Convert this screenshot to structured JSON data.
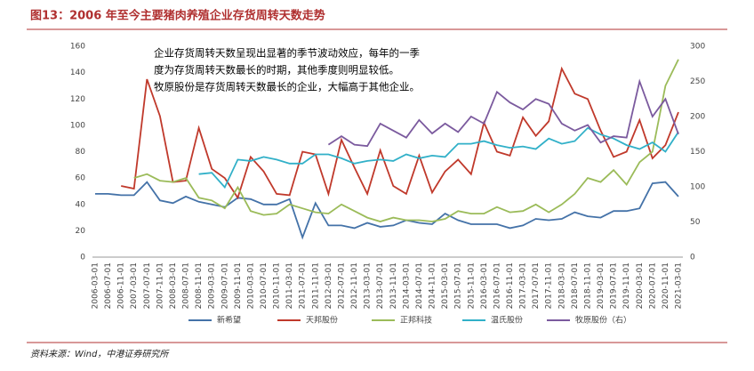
{
  "chart_data": {
    "type": "line",
    "title": "图13：2006 年至今主要猪肉养殖企业存货周转天数走势",
    "annotation": [
      "企业存货周转天数呈现出显著的季节波动效应，每年的一季",
      "度为存货周转天数最长的时期，其他季度则明显较低。",
      "牧原股份是存货周转天数最长的企业，大幅高于其他企业。"
    ],
    "source": "资料来源：Wind，中港证券研究所",
    "categories": [
      "2006-03-01",
      "2006-07-01",
      "2006-11-01",
      "2007-03-01",
      "2007-07-01",
      "2007-11-01",
      "2008-03-01",
      "2008-07-01",
      "2008-11-01",
      "2009-03-01",
      "2009-07-01",
      "2009-11-01",
      "2010-03-01",
      "2010-07-01",
      "2010-11-01",
      "2011-03-01",
      "2011-07-01",
      "2011-11-01",
      "2012-03-01",
      "2012-07-01",
      "2012-11-01",
      "2013-03-01",
      "2013-07-01",
      "2013-11-01",
      "2014-03-01",
      "2014-07-01",
      "2014-11-01",
      "2015-03-01",
      "2015-07-01",
      "2015-11-01",
      "2016-03-01",
      "2016-07-01",
      "2016-11-01",
      "2017-03-01",
      "2017-07-01",
      "2017-11-01",
      "2018-03-01",
      "2018-07-01",
      "2018-11-01",
      "2019-03-01",
      "2019-07-01",
      "2019-11-01",
      "2020-03-01",
      "2020-07-01",
      "2020-11-01",
      "2021-03-01"
    ],
    "series": [
      {
        "name": "新希望",
        "color": "#4472a8",
        "values": [
          48,
          48,
          47,
          47,
          57,
          43,
          41,
          46,
          42,
          40,
          38,
          45,
          44,
          40,
          40,
          44,
          15,
          41,
          24,
          24,
          22,
          26,
          23,
          24,
          28,
          26,
          25,
          33,
          28,
          25,
          25,
          25,
          22,
          24,
          29,
          28,
          29,
          34,
          31,
          30,
          35,
          35,
          37,
          56,
          57,
          46
        ]
      },
      {
        "name": "天邦股份",
        "color": "#c0392b",
        "values": [
          null,
          null,
          54,
          52,
          135,
          107,
          57,
          58,
          98,
          67,
          60,
          45,
          76,
          65,
          48,
          47,
          80,
          78,
          48,
          89,
          68,
          48,
          81,
          54,
          48,
          77,
          49,
          65,
          74,
          63,
          102,
          80,
          77,
          106,
          92,
          103,
          143,
          124,
          120,
          96,
          76,
          80,
          104,
          75,
          85,
          110
        ]
      },
      {
        "name": "正邦科技",
        "color": "#9bbb59",
        "values": [
          null,
          null,
          null,
          60,
          63,
          58,
          57,
          60,
          45,
          43,
          37,
          53,
          35,
          32,
          33,
          40,
          37,
          34,
          33,
          40,
          35,
          30,
          27,
          30,
          28,
          28,
          27,
          29,
          35,
          33,
          33,
          38,
          34,
          35,
          40,
          34,
          40,
          48,
          60,
          57,
          66,
          55,
          72,
          80,
          130,
          150
        ]
      },
      {
        "name": "温氏股份",
        "color": "#31b0c8",
        "values": [
          null,
          null,
          null,
          null,
          null,
          null,
          null,
          null,
          63,
          64,
          53,
          74,
          73,
          76,
          74,
          71,
          71,
          78,
          78,
          75,
          71,
          73,
          74,
          73,
          78,
          75,
          77,
          76,
          86,
          86,
          88,
          85,
          83,
          84,
          82,
          90,
          86,
          88,
          98,
          93,
          90,
          85,
          82,
          87,
          80,
          95
        ]
      },
      {
        "name": "牧原股份（右）",
        "color": "#7b5a9e",
        "axis": "y2",
        "values": [
          null,
          null,
          null,
          null,
          null,
          null,
          null,
          null,
          null,
          null,
          null,
          null,
          null,
          null,
          null,
          null,
          null,
          null,
          160,
          172,
          160,
          158,
          190,
          180,
          170,
          195,
          176,
          190,
          178,
          200,
          190,
          235,
          220,
          210,
          225,
          218,
          190,
          180,
          188,
          163,
          172,
          170,
          250,
          200,
          225,
          175
        ]
      }
    ],
    "ylim": [
      0,
      160
    ],
    "yticks": [
      0,
      20,
      40,
      60,
      80,
      100,
      120,
      140,
      160
    ],
    "y2lim": [
      0,
      300
    ],
    "y2ticks": [
      0,
      50,
      100,
      150,
      200,
      250,
      300
    ],
    "grid": false,
    "legend": "bottom"
  }
}
